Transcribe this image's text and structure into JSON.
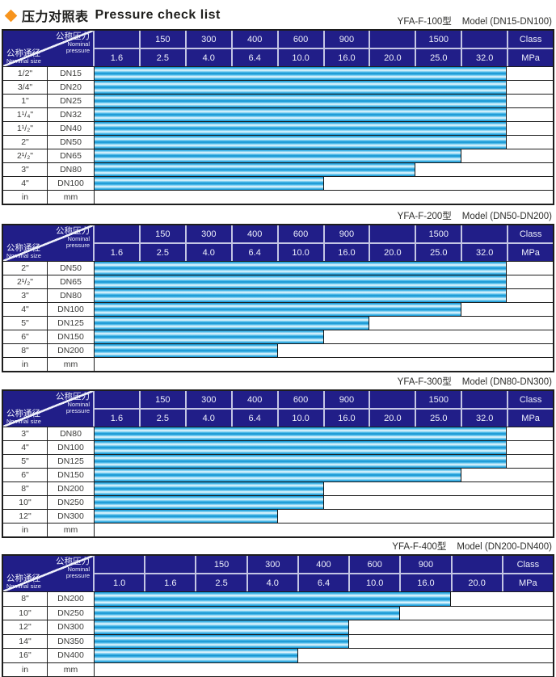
{
  "page": {
    "title_zh": "压力对照表",
    "title_en": "Pressure check list",
    "colors": {
      "accent": "#f7941d",
      "header_bg": "#211e88",
      "header_separator": "#c3c5e4",
      "bar_deep": "#0f90cf",
      "bar_mid": "#49b9e9",
      "bar_light": "#effbff"
    }
  },
  "header_cell": {
    "pressure_zh": "公称压力",
    "pressure_en1": "Nominal",
    "pressure_en2": "pressure",
    "size_zh": "公称通径",
    "size_en": "Nominal size"
  },
  "tables": [
    {
      "model": "YFA-F-100型",
      "range": "Model (DN15-DN100)",
      "class_row": [
        "",
        "150",
        "300",
        "400",
        "600",
        "900",
        "",
        "1500",
        "",
        "Class"
      ],
      "mpa_row": [
        "1.6",
        "2.5",
        "4.0",
        "6.4",
        "10.0",
        "16.0",
        "20.0",
        "25.0",
        "32.0",
        "MPa"
      ],
      "rows": [
        {
          "size": "1/2\"",
          "dn": "DN15",
          "bar_cols": 9,
          "max_mpa": "32.0"
        },
        {
          "size": "3/4\"",
          "dn": "DN20",
          "bar_cols": 9,
          "max_mpa": "32.0"
        },
        {
          "size": "1\"",
          "dn": "DN25",
          "bar_cols": 9,
          "max_mpa": "32.0"
        },
        {
          "size": "1¹/₄\"",
          "dn": "DN32",
          "bar_cols": 9,
          "max_mpa": "32.0"
        },
        {
          "size": "1¹/₂\"",
          "dn": "DN40",
          "bar_cols": 9,
          "max_mpa": "32.0"
        },
        {
          "size": "2\"",
          "dn": "DN50",
          "bar_cols": 9,
          "max_mpa": "32.0"
        },
        {
          "size": "2¹/₂\"",
          "dn": "DN65",
          "bar_cols": 8,
          "max_mpa": "25.0"
        },
        {
          "size": "3\"",
          "dn": "DN80",
          "bar_cols": 7,
          "max_mpa": "20.0"
        },
        {
          "size": "4\"",
          "dn": "DN100",
          "bar_cols": 5,
          "max_mpa": "10.0"
        },
        {
          "size": "in",
          "dn": "mm",
          "bar_cols": 0,
          "max_mpa": ""
        }
      ]
    },
    {
      "model": "YFA-F-200型",
      "range": "Model (DN50-DN200)",
      "class_row": [
        "",
        "150",
        "300",
        "400",
        "600",
        "900",
        "",
        "1500",
        "",
        "Class"
      ],
      "mpa_row": [
        "1.6",
        "2.5",
        "4.0",
        "6.4",
        "10.0",
        "16.0",
        "20.0",
        "25.0",
        "32.0",
        "MPa"
      ],
      "rows": [
        {
          "size": "2\"",
          "dn": "DN50",
          "bar_cols": 9,
          "max_mpa": "32.0"
        },
        {
          "size": "2¹/₂\"",
          "dn": "DN65",
          "bar_cols": 9,
          "max_mpa": "32.0"
        },
        {
          "size": "3\"",
          "dn": "DN80",
          "bar_cols": 9,
          "max_mpa": "32.0"
        },
        {
          "size": "4\"",
          "dn": "DN100",
          "bar_cols": 8,
          "max_mpa": "25.0"
        },
        {
          "size": "5\"",
          "dn": "DN125",
          "bar_cols": 6,
          "max_mpa": "16.0"
        },
        {
          "size": "6\"",
          "dn": "DN150",
          "bar_cols": 5,
          "max_mpa": "10.0"
        },
        {
          "size": "8\"",
          "dn": "DN200",
          "bar_cols": 4,
          "max_mpa": "6.4"
        },
        {
          "size": "in",
          "dn": "mm",
          "bar_cols": 0,
          "max_mpa": ""
        }
      ]
    },
    {
      "model": "YFA-F-300型",
      "range": "Model (DN80-DN300)",
      "class_row": [
        "",
        "150",
        "300",
        "400",
        "600",
        "900",
        "",
        "1500",
        "",
        "Class"
      ],
      "mpa_row": [
        "1.6",
        "2.5",
        "4.0",
        "6.4",
        "10.0",
        "16.0",
        "20.0",
        "25.0",
        "32.0",
        "MPa"
      ],
      "rows": [
        {
          "size": "3\"",
          "dn": "DN80",
          "bar_cols": 9,
          "max_mpa": "32.0"
        },
        {
          "size": "4\"",
          "dn": "DN100",
          "bar_cols": 9,
          "max_mpa": "32.0"
        },
        {
          "size": "5\"",
          "dn": "DN125",
          "bar_cols": 9,
          "max_mpa": "32.0"
        },
        {
          "size": "6\"",
          "dn": "DN150",
          "bar_cols": 8,
          "max_mpa": "25.0"
        },
        {
          "size": "8\"",
          "dn": "DN200",
          "bar_cols": 5,
          "max_mpa": "10.0"
        },
        {
          "size": "10\"",
          "dn": "DN250",
          "bar_cols": 5,
          "max_mpa": "10.0"
        },
        {
          "size": "12\"",
          "dn": "DN300",
          "bar_cols": 4,
          "max_mpa": "6.4"
        },
        {
          "size": "in",
          "dn": "mm",
          "bar_cols": 0,
          "max_mpa": ""
        }
      ]
    },
    {
      "model": "YFA-F-400型",
      "range": "Model (DN200-DN400)",
      "class_row": [
        "",
        "",
        "150",
        "300",
        "400",
        "600",
        "900",
        "",
        "Class"
      ],
      "mpa_row": [
        "1.0",
        "1.6",
        "2.5",
        "4.0",
        "6.4",
        "10.0",
        "16.0",
        "20.0",
        "MPa"
      ],
      "rows": [
        {
          "size": "8\"",
          "dn": "DN200",
          "bar_cols": 7,
          "max_mpa": "16.0"
        },
        {
          "size": "10\"",
          "dn": "DN250",
          "bar_cols": 6,
          "max_mpa": "10.0"
        },
        {
          "size": "12\"",
          "dn": "DN300",
          "bar_cols": 5,
          "max_mpa": "6.4"
        },
        {
          "size": "14\"",
          "dn": "DN350",
          "bar_cols": 5,
          "max_mpa": "6.4"
        },
        {
          "size": "16\"",
          "dn": "DN400",
          "bar_cols": 4,
          "max_mpa": "4.0"
        },
        {
          "size": "in",
          "dn": "mm",
          "bar_cols": 0,
          "max_mpa": ""
        }
      ]
    }
  ]
}
